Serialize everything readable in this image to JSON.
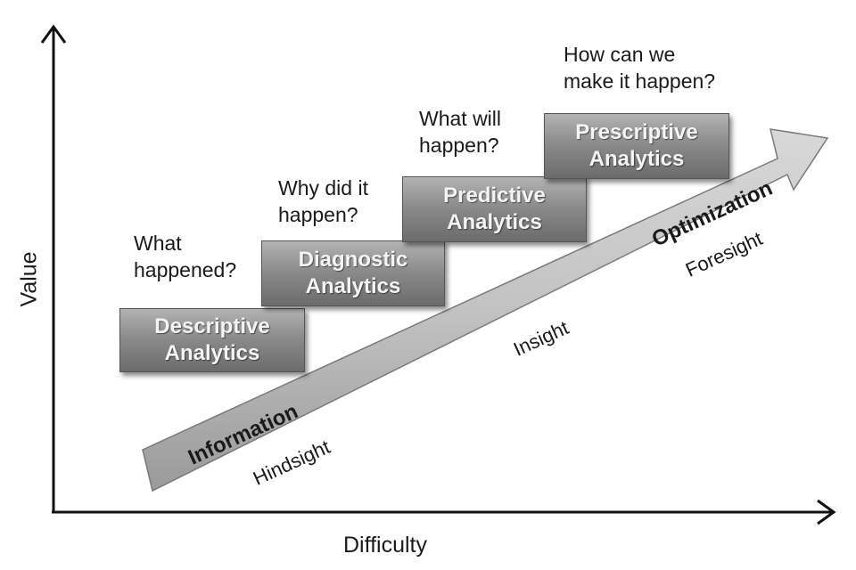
{
  "axes": {
    "y_label": "Value",
    "x_label": "Difficulty"
  },
  "stages": [
    {
      "box": "Descriptive\nAnalytics",
      "question": "What\nhappened?"
    },
    {
      "box": "Diagnostic\nAnalytics",
      "question": "Why did it\nhappen?"
    },
    {
      "box": "Predictive\nAnalytics",
      "question": "What will\nhappen?"
    },
    {
      "box": "Prescriptive\nAnalytics",
      "question": "How can we\nmake it happen?"
    }
  ],
  "arrow": {
    "bold_labels": [
      "Information",
      "Optimization"
    ],
    "regular_labels": [
      "Hindsight",
      "Insight",
      "Foresight"
    ]
  }
}
